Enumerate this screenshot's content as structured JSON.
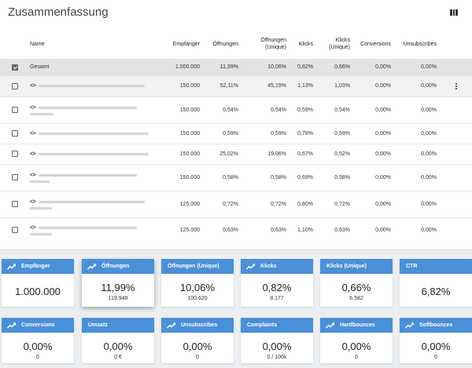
{
  "summary": {
    "title": "Zusammenfassung",
    "columns_icon": "view-column-icon",
    "headers": {
      "name": "Name",
      "empfaenger": "Empfänger",
      "oeffnungen": "Öffnungen",
      "oeffnungen_unique_1": "Öffnungen",
      "oeffnungen_unique_2": "(Unique)",
      "klicks": "Klicks",
      "klicks_unique_1": "Klicks",
      "klicks_unique_2": "(Unique)",
      "conversions": "Conversions",
      "unsubscribes": "Unsubscribes"
    },
    "total": {
      "name": "Gesamt",
      "empfaenger": "1.000.000",
      "oeffnungen": "11,99%",
      "oeffnungen_unique": "10,06%",
      "klicks": "0,82%",
      "klicks_unique": "0,66%",
      "conversions": "0,00%",
      "unsubscribes": "0,00%"
    },
    "rows": [
      {
        "empfaenger": "150.000",
        "oeffnungen": "52,11%",
        "oeffnungen_unique": "45,19%",
        "klicks": "1,13%",
        "klicks_unique": "1,03%",
        "conversions": "0,00%",
        "unsubscribes": "0,00%"
      },
      {
        "empfaenger": "150.000",
        "oeffnungen": "0,54%",
        "oeffnungen_unique": "0,54%",
        "klicks": "0,59%",
        "klicks_unique": "0,54%",
        "conversions": "0,00%",
        "unsubscribes": "0,00%"
      },
      {
        "empfaenger": "150.000",
        "oeffnungen": "0,59%",
        "oeffnungen_unique": "0,59%",
        "klicks": "0,78%",
        "klicks_unique": "0,59%",
        "conversions": "0,00%",
        "unsubscribes": "0,00%"
      },
      {
        "empfaenger": "150.000",
        "oeffnungen": "25,02%",
        "oeffnungen_unique": "19,06%",
        "klicks": "0,67%",
        "klicks_unique": "0,52%",
        "conversions": "0,00%",
        "unsubscribes": "0,00%"
      },
      {
        "empfaenger": "150.000",
        "oeffnungen": "0,58%",
        "oeffnungen_unique": "0,58%",
        "klicks": "0,69%",
        "klicks_unique": "0,58%",
        "conversions": "0,00%",
        "unsubscribes": "0,00%"
      },
      {
        "empfaenger": "125.000",
        "oeffnungen": "0,72%",
        "oeffnungen_unique": "0,72%",
        "klicks": "0,80%",
        "klicks_unique": "0,72%",
        "conversions": "0,00%",
        "unsubscribes": "0,00%"
      },
      {
        "empfaenger": "125.000",
        "oeffnungen": "0,63%",
        "oeffnungen_unique": "0,63%",
        "klicks": "1,10%",
        "klicks_unique": "0,63%",
        "conversions": "0,00%",
        "unsubscribes": "0,00%"
      }
    ]
  },
  "cards": [
    {
      "title": "Empfänger",
      "value": "1.000.000",
      "sub": "",
      "trend": true
    },
    {
      "title": "Öffnungen",
      "value": "11,99%",
      "sub": "119.948",
      "trend": true
    },
    {
      "title": "Öffnungen (Unique)",
      "value": "10,06%",
      "sub": "100.620",
      "trend": false
    },
    {
      "title": "Klicks",
      "value": "0,82%",
      "sub": "8.177",
      "trend": true
    },
    {
      "title": "Klicks (Unique)",
      "value": "0,66%",
      "sub": "6.582",
      "trend": false
    },
    {
      "title": "CTR",
      "value": "6,82%",
      "sub": "",
      "trend": false
    },
    {
      "title": "Conversions",
      "value": "0,00%",
      "sub": "0",
      "trend": true
    },
    {
      "title": "Umsatz",
      "value": "0,00%",
      "sub": "0 €",
      "trend": false
    },
    {
      "title": "Unsubscribes",
      "value": "0,00%",
      "sub": "0",
      "trend": true
    },
    {
      "title": "Complaints",
      "value": "0,00%",
      "sub": "0 / 100k",
      "trend": false
    },
    {
      "title": "Hardbounces",
      "value": "0,00%",
      "sub": "0",
      "trend": true
    },
    {
      "title": "Softbounces",
      "value": "0,00%",
      "sub": "0",
      "trend": true
    }
  ],
  "colors": {
    "accent": "#4a90d9",
    "total_row": "#e3e3e3"
  }
}
